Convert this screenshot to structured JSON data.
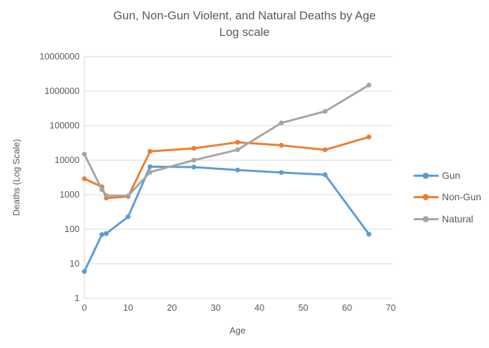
{
  "title": {
    "line1": "Gun, Non-Gun Violent, and Natural Deaths by Age",
    "line2": "Log scale"
  },
  "axes": {
    "x_label": "Age",
    "y_label": "Deaths (Log Scale)",
    "x_ticks": [
      0,
      10,
      20,
      30,
      40,
      50,
      60,
      70
    ],
    "y_ticks": [
      "1",
      "10",
      "100",
      "1000",
      "10000",
      "100000",
      "1000000",
      "10000000"
    ]
  },
  "chart_data": {
    "type": "line",
    "title": "Gun, Non-Gun Violent, and Natural Deaths by Age",
    "subtitle": "Log scale",
    "xlabel": "Age",
    "ylabel": "Deaths (Log Scale)",
    "x": [
      0,
      4,
      5,
      10,
      15,
      25,
      35,
      45,
      55,
      65
    ],
    "series": [
      {
        "name": "Gun",
        "color": "#5B9BD5",
        "values": [
          6,
          70,
          75,
          230,
          6500,
          6300,
          5200,
          4400,
          3800,
          72
        ]
      },
      {
        "name": "Non-Gun",
        "color": "#ED7D31",
        "values": [
          2900,
          1700,
          800,
          880,
          18000,
          22000,
          33000,
          27000,
          20000,
          47000
        ]
      },
      {
        "name": "Natural",
        "color": "#A5A5A5",
        "values": [
          15000,
          1400,
          950,
          930,
          4500,
          10000,
          20000,
          120000,
          260000,
          1500000
        ]
      }
    ],
    "xlim": [
      0,
      70
    ],
    "ylim": [
      1,
      10000000
    ],
    "y_scale": "log",
    "grid": "horizontal",
    "legend_position": "right",
    "marker": "circle"
  },
  "colors": {
    "text": "#595959",
    "gridline": "#D9D9D9"
  }
}
